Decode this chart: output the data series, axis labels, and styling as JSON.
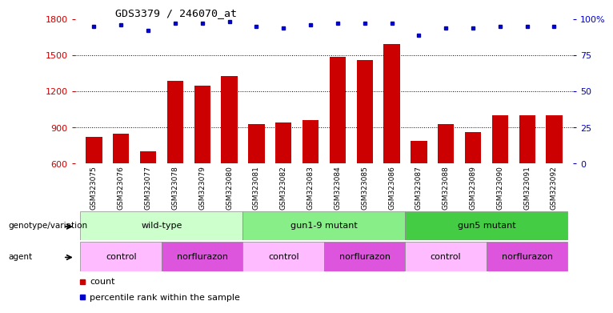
{
  "title": "GDS3379 / 246070_at",
  "samples": [
    "GSM323075",
    "GSM323076",
    "GSM323077",
    "GSM323078",
    "GSM323079",
    "GSM323080",
    "GSM323081",
    "GSM323082",
    "GSM323083",
    "GSM323084",
    "GSM323085",
    "GSM323086",
    "GSM323087",
    "GSM323088",
    "GSM323089",
    "GSM323090",
    "GSM323091",
    "GSM323092"
  ],
  "counts": [
    820,
    850,
    700,
    1290,
    1250,
    1330,
    930,
    940,
    960,
    1490,
    1460,
    1590,
    790,
    930,
    860,
    1000,
    1000,
    1000
  ],
  "percentile_ranks": [
    95,
    96,
    92,
    97,
    97,
    98,
    95,
    94,
    96,
    97,
    97,
    97,
    89,
    94,
    94,
    95,
    95,
    95
  ],
  "bar_color": "#cc0000",
  "dot_color": "#0000cc",
  "ylim_left": [
    600,
    1800
  ],
  "ylim_right": [
    0,
    100
  ],
  "yticks_left": [
    600,
    900,
    1200,
    1500,
    1800
  ],
  "yticks_right": [
    0,
    25,
    50,
    75,
    100
  ],
  "grid_values": [
    900,
    1200,
    1500
  ],
  "genotype_groups": [
    {
      "label": "wild-type",
      "start": 0,
      "end": 5,
      "color": "#ccffcc"
    },
    {
      "label": "gun1-9 mutant",
      "start": 6,
      "end": 11,
      "color": "#88ee88"
    },
    {
      "label": "gun5 mutant",
      "start": 12,
      "end": 17,
      "color": "#44cc44"
    }
  ],
  "agent_groups": [
    {
      "label": "control",
      "start": 0,
      "end": 2,
      "color": "#ffbbff"
    },
    {
      "label": "norflurazon",
      "start": 3,
      "end": 5,
      "color": "#dd55dd"
    },
    {
      "label": "control",
      "start": 6,
      "end": 8,
      "color": "#ffbbff"
    },
    {
      "label": "norflurazon",
      "start": 9,
      "end": 11,
      "color": "#dd55dd"
    },
    {
      "label": "control",
      "start": 12,
      "end": 14,
      "color": "#ffbbff"
    },
    {
      "label": "norflurazon",
      "start": 15,
      "end": 17,
      "color": "#dd55dd"
    }
  ],
  "background_color": "#ffffff",
  "geno_label": "genotype/variation",
  "agent_label": "agent",
  "legend_count_label": "count",
  "legend_pct_label": "percentile rank within the sample",
  "right_pct_label": "100%"
}
